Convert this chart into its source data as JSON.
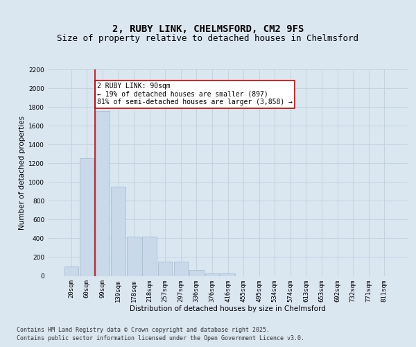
{
  "title_line1": "2, RUBY LINK, CHELMSFORD, CM2 9FS",
  "title_line2": "Size of property relative to detached houses in Chelmsford",
  "xlabel": "Distribution of detached houses by size in Chelmsford",
  "ylabel": "Number of detached properties",
  "categories": [
    "20sqm",
    "60sqm",
    "99sqm",
    "139sqm",
    "178sqm",
    "218sqm",
    "257sqm",
    "297sqm",
    "336sqm",
    "376sqm",
    "416sqm",
    "455sqm",
    "495sqm",
    "534sqm",
    "574sqm",
    "613sqm",
    "653sqm",
    "692sqm",
    "732sqm",
    "771sqm",
    "811sqm"
  ],
  "values": [
    100,
    1250,
    1760,
    950,
    415,
    415,
    155,
    155,
    60,
    25,
    25,
    0,
    0,
    0,
    0,
    0,
    0,
    0,
    0,
    0,
    0
  ],
  "bar_color": "#cad9ea",
  "bar_edge_color": "#9db8d2",
  "vline_color": "#cc0000",
  "vline_pos": 1.5,
  "annotation_text": "2 RUBY LINK: 90sqm\n← 19% of detached houses are smaller (897)\n81% of semi-detached houses are larger (3,858) →",
  "annotation_box_facecolor": "#ffffff",
  "annotation_box_edgecolor": "#cc0000",
  "ylim_max": 2200,
  "yticks": [
    0,
    200,
    400,
    600,
    800,
    1000,
    1200,
    1400,
    1600,
    1800,
    2000,
    2200
  ],
  "grid_color": "#c0d0e0",
  "bg_color": "#dae6f0",
  "footer_line1": "Contains HM Land Registry data © Crown copyright and database right 2025.",
  "footer_line2": "Contains public sector information licensed under the Open Government Licence v3.0.",
  "title_fontsize": 10,
  "subtitle_fontsize": 9,
  "axis_label_fontsize": 7.5,
  "tick_fontsize": 6.5,
  "annotation_fontsize": 7,
  "footer_fontsize": 6
}
